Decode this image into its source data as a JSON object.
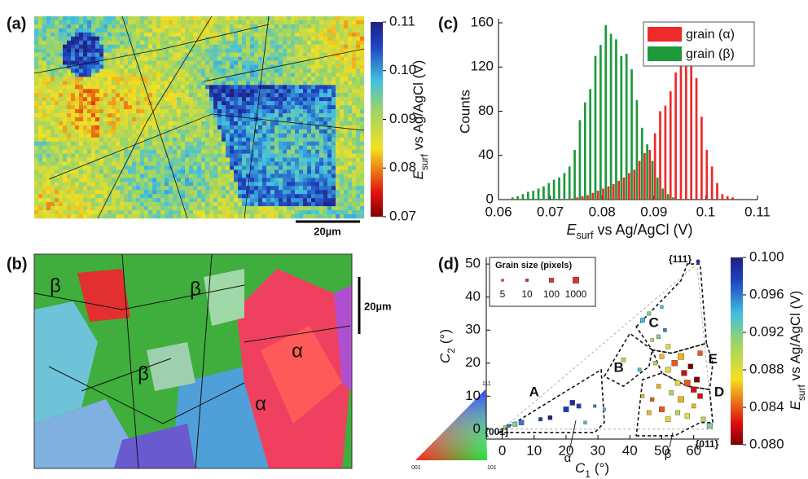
{
  "chart_data": [
    {
      "type": "map",
      "panel": "(a)",
      "scale_bar": "20µm",
      "colorbar": {
        "lim": [
          0.07,
          0.11
        ],
        "ticks": [
          0.07,
          0.08,
          0.09,
          {
            "value": 0.1,
            "label": "0.10"
          },
          0.11
        ],
        "label": {
          "main": "E",
          "sub": "surf",
          "rest": "vs Ag/AgCl (V)"
        }
      }
    },
    {
      "type": "orientation_map",
      "panel": "(b)",
      "labels": [
        "β",
        "β",
        "β",
        "α",
        "α"
      ],
      "scale_bar": "20µm",
      "ipf_labels": [
        "111",
        "001",
        "101"
      ]
    },
    {
      "type": "bar",
      "panel": "(c)",
      "x": [
        0.063,
        0.064,
        0.065,
        0.066,
        0.067,
        0.068,
        0.069,
        0.07,
        0.071,
        0.072,
        0.073,
        0.074,
        0.075,
        0.076,
        0.077,
        0.078,
        0.079,
        0.08,
        0.081,
        0.082,
        0.083,
        0.084,
        0.085,
        0.086,
        0.087,
        0.088,
        0.089,
        0.09,
        0.091,
        0.092,
        0.093,
        0.094,
        0.095,
        0.096,
        0.097,
        0.098,
        0.099,
        0.1,
        0.101,
        0.102,
        0.103,
        0.104,
        0.105
      ],
      "series": [
        {
          "name": "grain (β)",
          "color": "#1e9a3c",
          "values": [
            2,
            3,
            5,
            7,
            8,
            10,
            12,
            15,
            18,
            20,
            24,
            30,
            45,
            72,
            88,
            100,
            130,
            140,
            158,
            150,
            145,
            130,
            132,
            118,
            90,
            65,
            50,
            35,
            20,
            10,
            5,
            2,
            0,
            0,
            0,
            0,
            0,
            0,
            0,
            0,
            0,
            0,
            0
          ]
        },
        {
          "name": "grain (α)",
          "color": "#ee2a2a",
          "values": [
            0,
            0,
            0,
            0,
            0,
            0,
            0,
            0,
            0,
            0,
            0,
            1,
            2,
            3,
            4,
            6,
            8,
            10,
            12,
            14,
            17,
            20,
            24,
            27,
            35,
            42,
            45,
            60,
            80,
            85,
            98,
            115,
            135,
            140,
            130,
            110,
            75,
            45,
            30,
            15,
            5,
            3,
            2
          ]
        }
      ],
      "xlim": [
        0.06,
        0.11
      ],
      "xticks": [
        0.06,
        0.07,
        0.08,
        0.09,
        0.1,
        0.11
      ],
      "ylim": [
        0,
        160
      ],
      "yticks": [
        0,
        40,
        80,
        120,
        160
      ],
      "y_label": "Counts",
      "x_label": {
        "main": "E",
        "sub": "surf",
        "rest": "vs Ag/AgCl (V)"
      }
    },
    {
      "type": "scatter",
      "panel": "(d)",
      "x": [
        1,
        2,
        4,
        6,
        12,
        15,
        20,
        22,
        24,
        29,
        32,
        26,
        38,
        43,
        44,
        46,
        47,
        49,
        51,
        50,
        50,
        52,
        54,
        56,
        57,
        58,
        60,
        61,
        62,
        55,
        53,
        49,
        47,
        46,
        50,
        52,
        55,
        58,
        60,
        63,
        65,
        56,
        59,
        52,
        48,
        44,
        62
      ],
      "y": [
        0.5,
        1,
        1.5,
        2,
        3,
        3.5,
        6,
        8,
        7,
        7,
        6,
        2,
        21,
        18,
        33,
        35,
        27,
        28,
        30,
        37,
        22,
        18,
        20,
        22,
        17,
        14,
        12,
        15,
        10,
        14,
        11,
        13,
        9,
        5,
        6,
        3,
        5,
        4,
        7,
        3,
        1,
        9,
        19,
        25,
        20,
        10,
        23
      ],
      "sizes": [
        50,
        20,
        100,
        200,
        30,
        60,
        300,
        200,
        80,
        10,
        10,
        15,
        60,
        20,
        80,
        30,
        15,
        40,
        20,
        15,
        100,
        300,
        600,
        900,
        400,
        800,
        500,
        300,
        200,
        200,
        100,
        60,
        40,
        80,
        300,
        200,
        100,
        150,
        60,
        100,
        300,
        700,
        200,
        80,
        40,
        20,
        150
      ],
      "values": [
        0.09,
        0.096,
        0.092,
        0.096,
        0.098,
        0.1,
        0.098,
        0.099,
        0.098,
        0.096,
        0.094,
        0.094,
        0.09,
        0.094,
        0.094,
        0.092,
        0.09,
        0.092,
        0.096,
        0.094,
        0.086,
        0.088,
        0.084,
        0.086,
        0.082,
        0.084,
        0.082,
        0.08,
        0.082,
        0.088,
        0.09,
        0.086,
        0.084,
        0.086,
        0.084,
        0.088,
        0.09,
        0.088,
        0.086,
        0.09,
        0.092,
        0.086,
        0.08,
        0.088,
        0.09,
        0.086,
        0.084
      ],
      "xlim": [
        -5,
        68
      ],
      "xticks": [
        0,
        10,
        20,
        30,
        40,
        50,
        60
      ],
      "ylim": [
        -3,
        52
      ],
      "yticks": [
        0,
        10,
        20,
        30,
        40,
        50
      ],
      "x_label": {
        "main": "C",
        "sub": "1",
        "rest": "(°)"
      },
      "y_label": {
        "main": "C",
        "sub": "2",
        "rest": "(°)"
      },
      "regions": [
        "A",
        "B",
        "C",
        "D",
        "E"
      ],
      "corners": [
        "{001}",
        "{111}",
        "{011}"
      ],
      "annotations": [
        "α",
        "β"
      ],
      "size_legend": {
        "title": "Grain size (pixels)",
        "sizes": [
          5,
          10,
          100,
          1000
        ]
      },
      "colorbar": {
        "lim": [
          0.08,
          0.1
        ],
        "ticks": [
          {
            "value": 0.08,
            "label": "0.080"
          },
          0.084,
          0.088,
          0.092,
          0.096,
          {
            "value": 0.1,
            "label": "0.100"
          }
        ],
        "label": {
          "main": "E",
          "sub": "surf",
          "rest": "vs Ag/AgCl (V)"
        }
      }
    }
  ]
}
